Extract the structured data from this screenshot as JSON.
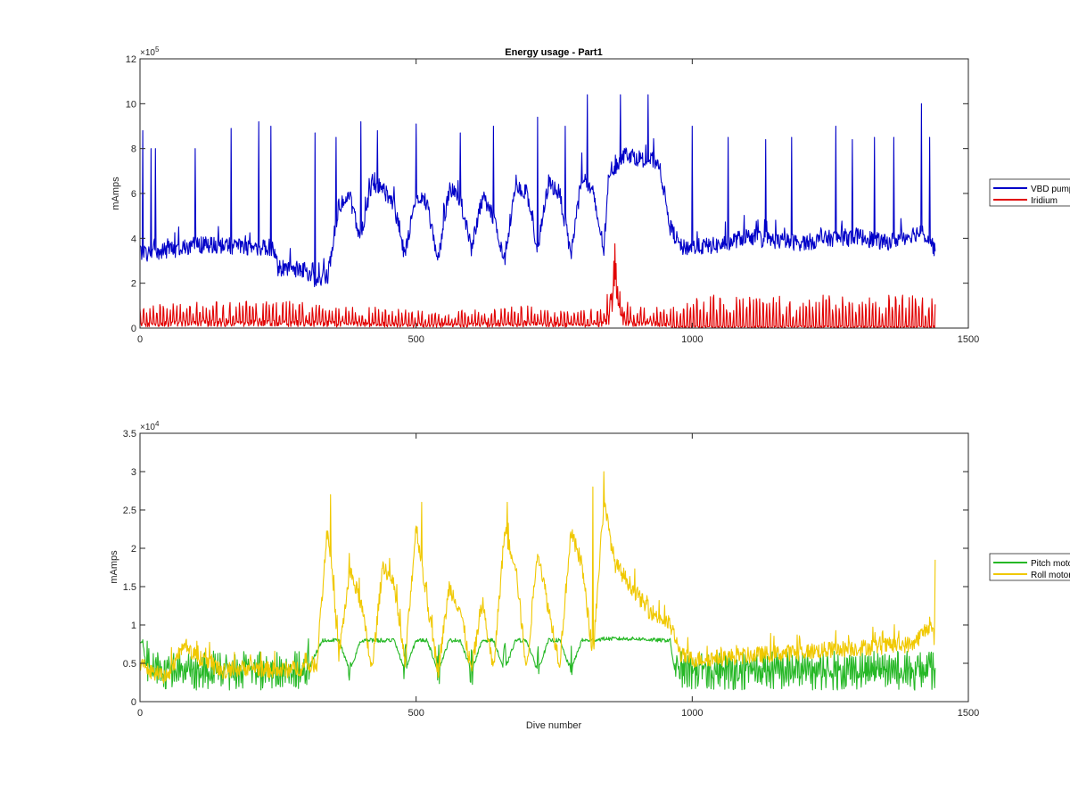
{
  "chart_data": [
    {
      "type": "line",
      "title": "Energy usage - Part1",
      "xlabel": "",
      "ylabel": "mAmps",
      "xlim": [
        0,
        1500
      ],
      "ylim": [
        0,
        12
      ],
      "y_multiplier_label": "×10",
      "y_multiplier_exponent": "5",
      "x_ticks": [
        "0",
        "500",
        "1000",
        "1500"
      ],
      "y_ticks": [
        "0",
        "2",
        "4",
        "6",
        "8",
        "10",
        "12"
      ],
      "legend": "outside-right",
      "grid": false,
      "series": [
        {
          "name": "VBD pump",
          "color": "#0000c8",
          "x": [
            0,
            20,
            60,
            100,
            150,
            200,
            240,
            250,
            300,
            320,
            340,
            360,
            380,
            400,
            420,
            440,
            460,
            480,
            500,
            520,
            540,
            560,
            580,
            600,
            620,
            640,
            660,
            680,
            700,
            720,
            740,
            760,
            780,
            800,
            820,
            840,
            850,
            860,
            880,
            900,
            920,
            940,
            960,
            980,
            1000,
            1050,
            1100,
            1150,
            1200,
            1250,
            1300,
            1350,
            1400,
            1420,
            1440
          ],
          "y": [
            3.4,
            3.3,
            3.5,
            3.7,
            3.7,
            3.6,
            3.6,
            2.7,
            2.6,
            2.0,
            2.3,
            5.5,
            5.8,
            4.0,
            6.5,
            6.2,
            5.5,
            3.2,
            6.0,
            5.5,
            3.0,
            6.2,
            5.8,
            3.5,
            5.8,
            5.0,
            3.0,
            6.5,
            6.0,
            3.5,
            6.5,
            6.0,
            3.2,
            6.8,
            6.0,
            3.5,
            7.0,
            7.2,
            7.8,
            7.6,
            7.5,
            7.4,
            4.5,
            3.6,
            3.6,
            3.7,
            4.1,
            3.9,
            3.8,
            4.0,
            4.1,
            3.8,
            4.2,
            4.3,
            3.5
          ],
          "spikes": [
            [
              5,
              8.8
            ],
            [
              20,
              8.0
            ],
            [
              28,
              8.0
            ],
            [
              100,
              8.0
            ],
            [
              165,
              8.9
            ],
            [
              215,
              9.2
            ],
            [
              237,
              9.0
            ],
            [
              317,
              8.7
            ],
            [
              355,
              8.5
            ],
            [
              400,
              9.2
            ],
            [
              430,
              8.8
            ],
            [
              500,
              9.1
            ],
            [
              580,
              8.7
            ],
            [
              640,
              9.0
            ],
            [
              720,
              9.4
            ],
            [
              770,
              9.0
            ],
            [
              810,
              10.4
            ],
            [
              870,
              10.4
            ],
            [
              920,
              10.4
            ],
            [
              1000,
              9.0
            ],
            [
              1065,
              8.5
            ],
            [
              1133,
              8.4
            ],
            [
              1180,
              8.5
            ],
            [
              1260,
              9.0
            ],
            [
              1290,
              8.4
            ],
            [
              1330,
              8.5
            ],
            [
              1365,
              8.5
            ],
            [
              1415,
              10.0
            ],
            [
              1430,
              8.5
            ]
          ]
        },
        {
          "name": "Iridium",
          "color": "#e10000",
          "x": [
            0,
            100,
            200,
            300,
            360,
            400,
            500,
            600,
            700,
            800,
            840,
            855,
            860,
            865,
            870,
            880,
            900,
            940,
            960,
            970,
            1000,
            1100,
            1200,
            1300,
            1400,
            1440
          ],
          "y": [
            0.5,
            0.6,
            0.6,
            0.6,
            0.5,
            0.5,
            0.4,
            0.4,
            0.5,
            0.4,
            0.5,
            1.5,
            3.4,
            2.8,
            1.0,
            0.6,
            0.5,
            0.5,
            0.4,
            0.8,
            0.7,
            0.8,
            0.8,
            0.8,
            0.8,
            0.8
          ],
          "spike_peak_range": [
            0.9,
            1.5
          ]
        }
      ]
    },
    {
      "type": "line",
      "title": "",
      "xlabel": "Dive number",
      "ylabel": "mAmps",
      "xlim": [
        0,
        1500
      ],
      "ylim": [
        0,
        3.5
      ],
      "y_multiplier_label": "×10",
      "y_multiplier_exponent": "4",
      "x_ticks": [
        "0",
        "500",
        "1000",
        "1500"
      ],
      "y_ticks": [
        "0",
        "0.5",
        "1",
        "1.5",
        "2",
        "2.5",
        "3",
        "3.5"
      ],
      "legend": "outside-right",
      "grid": false,
      "series": [
        {
          "name": "Pitch motor",
          "color": "#26b826",
          "x": [
            0,
            5,
            10,
            20,
            100,
            200,
            300,
            310,
            330,
            340,
            360,
            380,
            400,
            420,
            440,
            460,
            480,
            500,
            520,
            540,
            560,
            580,
            600,
            620,
            640,
            660,
            680,
            700,
            720,
            740,
            760,
            780,
            800,
            820,
            840,
            860,
            880,
            900,
            940,
            960,
            970,
            1000,
            1100,
            1200,
            1300,
            1400,
            1440
          ],
          "y": [
            0.75,
            0.8,
            0.5,
            0.3,
            0.3,
            0.3,
            0.3,
            0.5,
            0.8,
            0.8,
            0.8,
            0.4,
            0.8,
            0.8,
            0.8,
            0.8,
            0.4,
            0.8,
            0.8,
            0.4,
            0.8,
            0.8,
            0.4,
            0.8,
            0.8,
            0.4,
            0.8,
            0.8,
            0.4,
            0.8,
            0.8,
            0.4,
            0.8,
            0.8,
            0.82,
            0.82,
            0.82,
            0.82,
            0.8,
            0.8,
            0.3,
            0.3,
            0.3,
            0.3,
            0.3,
            0.3,
            0.3
          ]
        },
        {
          "name": "Roll motor",
          "color": "#f0c800",
          "x": [
            0,
            20,
            50,
            80,
            100,
            150,
            200,
            250,
            300,
            320,
            340,
            350,
            360,
            380,
            400,
            420,
            440,
            460,
            480,
            500,
            520,
            540,
            560,
            580,
            600,
            620,
            640,
            660,
            680,
            700,
            720,
            740,
            760,
            780,
            800,
            820,
            840,
            860,
            880,
            900,
            920,
            940,
            960,
            980,
            1000,
            1100,
            1200,
            1300,
            1400,
            1430,
            1440
          ],
          "y": [
            0.5,
            0.4,
            0.3,
            0.8,
            0.6,
            0.4,
            0.45,
            0.4,
            0.45,
            0.5,
            2.3,
            1.5,
            0.6,
            1.7,
            1.3,
            0.4,
            1.8,
            1.5,
            0.5,
            2.3,
            1.3,
            0.4,
            1.5,
            1.2,
            0.4,
            1.3,
            0.4,
            2.2,
            1.8,
            0.4,
            2.0,
            1.2,
            0.5,
            2.2,
            1.8,
            0.6,
            2.6,
            1.8,
            1.6,
            1.4,
            1.2,
            1.1,
            1.0,
            0.6,
            0.55,
            0.6,
            0.65,
            0.7,
            0.75,
            1.0,
            0.8
          ],
          "spikes": [
            [
              345,
              2.7
            ],
            [
              510,
              2.6
            ],
            [
              665,
              2.6
            ],
            [
              820,
              2.8
            ],
            [
              840,
              3.0
            ],
            [
              1440,
              1.85
            ]
          ]
        }
      ]
    }
  ]
}
